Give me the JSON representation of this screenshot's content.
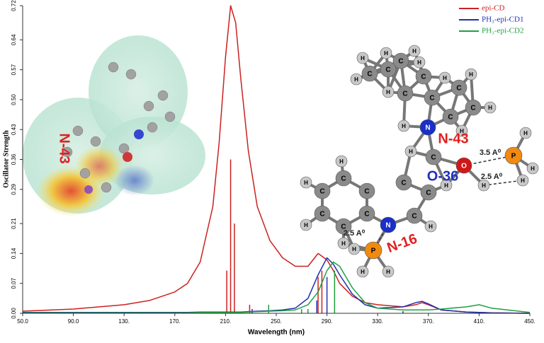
{
  "chart_data": {
    "type": "line",
    "x_label": "Wavelength (nm)",
    "y_label": "Oscillator Strength",
    "xlim": [
      50,
      450
    ],
    "ylim": [
      0,
      0.72
    ],
    "xticks": [
      {
        "value": 50,
        "label": "50.0"
      },
      {
        "value": 90,
        "label": "90.0"
      },
      {
        "value": 130,
        "label": "130."
      },
      {
        "value": 170,
        "label": "170."
      },
      {
        "value": 210,
        "label": "210."
      },
      {
        "value": 250,
        "label": "250."
      },
      {
        "value": 290,
        "label": "290."
      },
      {
        "value": 330,
        "label": "330."
      },
      {
        "value": 370,
        "label": "370."
      },
      {
        "value": 410,
        "label": "410."
      },
      {
        "value": 450,
        "label": "450."
      }
    ],
    "yticks": [
      {
        "value": 0,
        "label": "0.00"
      },
      {
        "value": 0.07,
        "label": "0.07"
      },
      {
        "value": 0.14,
        "label": "0.14"
      },
      {
        "value": 0.21,
        "label": "0.21"
      },
      {
        "value": 0.29,
        "label": "0.29"
      },
      {
        "value": 0.36,
        "label": "0.36"
      },
      {
        "value": 0.43,
        "label": "0.43"
      },
      {
        "value": 0.5,
        "label": "0.50"
      },
      {
        "value": 0.57,
        "label": "0.57"
      },
      {
        "value": 0.64,
        "label": "0.64"
      },
      {
        "value": 0.72,
        "label": "0.72"
      }
    ],
    "x": [
      50,
      90,
      130,
      150,
      170,
      180,
      190,
      200,
      205,
      210,
      214,
      218,
      222,
      228,
      235,
      245,
      255,
      265,
      275,
      283,
      290,
      295,
      300,
      310,
      320,
      330,
      350,
      360,
      365,
      370,
      380,
      400,
      410,
      420,
      450
    ],
    "series": [
      {
        "name": "epi-CD",
        "color": "#cc2020",
        "values": [
          0.005,
          0.01,
          0.02,
          0.03,
          0.05,
          0.07,
          0.12,
          0.25,
          0.4,
          0.6,
          0.72,
          0.68,
          0.55,
          0.38,
          0.25,
          0.17,
          0.13,
          0.11,
          0.11,
          0.14,
          0.125,
          0.1,
          0.07,
          0.04,
          0.025,
          0.02,
          0.015,
          0.02,
          0.025,
          0.02,
          0.008,
          0.003,
          0.002,
          0.001,
          0
        ],
        "sticks": {
          "x": [
            211,
            214,
            217,
            229,
            283,
            286
          ],
          "values": [
            0.1,
            0.36,
            0.21,
            0.02,
            0.085,
            0.1
          ]
        }
      },
      {
        "name": "PH₃-epi-CD1",
        "color": "#2030b0",
        "values": [
          0.002,
          0.002,
          0.002,
          0.002,
          0.002,
          0.002,
          0.003,
          0.003,
          0.003,
          0.003,
          0.003,
          0.003,
          0.003,
          0.004,
          0.005,
          0.006,
          0.008,
          0.012,
          0.035,
          0.09,
          0.13,
          0.115,
          0.09,
          0.045,
          0.02,
          0.012,
          0.015,
          0.025,
          0.028,
          0.022,
          0.008,
          0.003,
          0.002,
          0.001,
          0
        ],
        "sticks": {
          "x": [
            231,
            282,
            290,
            350
          ],
          "values": [
            0.01,
            0.03,
            0.085,
            0.005
          ]
        }
      },
      {
        "name": "PH₃-epi-CD2",
        "color": "#20a040",
        "values": [
          0.001,
          0.001,
          0.001,
          0.001,
          0.001,
          0.001,
          0.002,
          0.002,
          0.002,
          0.002,
          0.002,
          0.002,
          0.002,
          0.003,
          0.004,
          0.005,
          0.006,
          0.008,
          0.02,
          0.05,
          0.1,
          0.12,
          0.11,
          0.06,
          0.025,
          0.012,
          0.008,
          0.008,
          0.008,
          0.008,
          0.01,
          0.015,
          0.02,
          0.012,
          0.002
        ],
        "sticks": {
          "x": [
            244,
            270,
            275,
            296
          ],
          "values": [
            0.02,
            0.01,
            0.01,
            0.1
          ]
        }
      }
    ],
    "annotations": [
      "N-43",
      "O-36",
      "N-16",
      "3.5 A⁰",
      "2.5 A⁰",
      "2.5 A⁰",
      "N-43"
    ],
    "atoms": [
      "H",
      "C",
      "H",
      "C",
      "H",
      "C",
      "H",
      "C",
      "H",
      "C",
      "H",
      "C",
      "H",
      "C",
      "H",
      "C",
      "H",
      "C",
      "H",
      "N",
      "H",
      "C",
      "H",
      "O",
      "H",
      "C",
      "C",
      "C",
      "H",
      "H",
      "N",
      "C",
      "C",
      "C",
      "H",
      "C",
      "H",
      "C",
      "H",
      "C",
      "H",
      "P",
      "H",
      "H",
      "H",
      "P",
      "H",
      "H",
      "H"
    ]
  }
}
